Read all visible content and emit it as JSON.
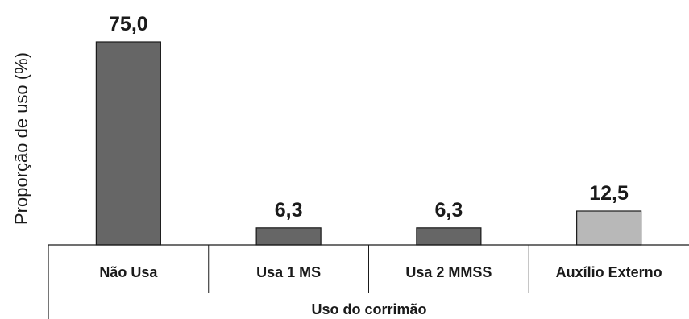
{
  "chart_data": {
    "type": "bar",
    "categories": [
      "Não Usa",
      "Usa 1 MS",
      "Usa 2 MMSS",
      "Auxílio Externo"
    ],
    "values": [
      75.0,
      6.3,
      6.3,
      12.5
    ],
    "value_labels": [
      "75,0",
      "6,3",
      "6,3",
      "12,5"
    ],
    "bar_colors": [
      "#666666",
      "#666666",
      "#666666",
      "#b8b8b8"
    ],
    "xlabel": "Uso do corrimão",
    "ylabel": "Proporção de uso (%)",
    "ylim": [
      0,
      75
    ],
    "grid": false,
    "legend": "none"
  }
}
